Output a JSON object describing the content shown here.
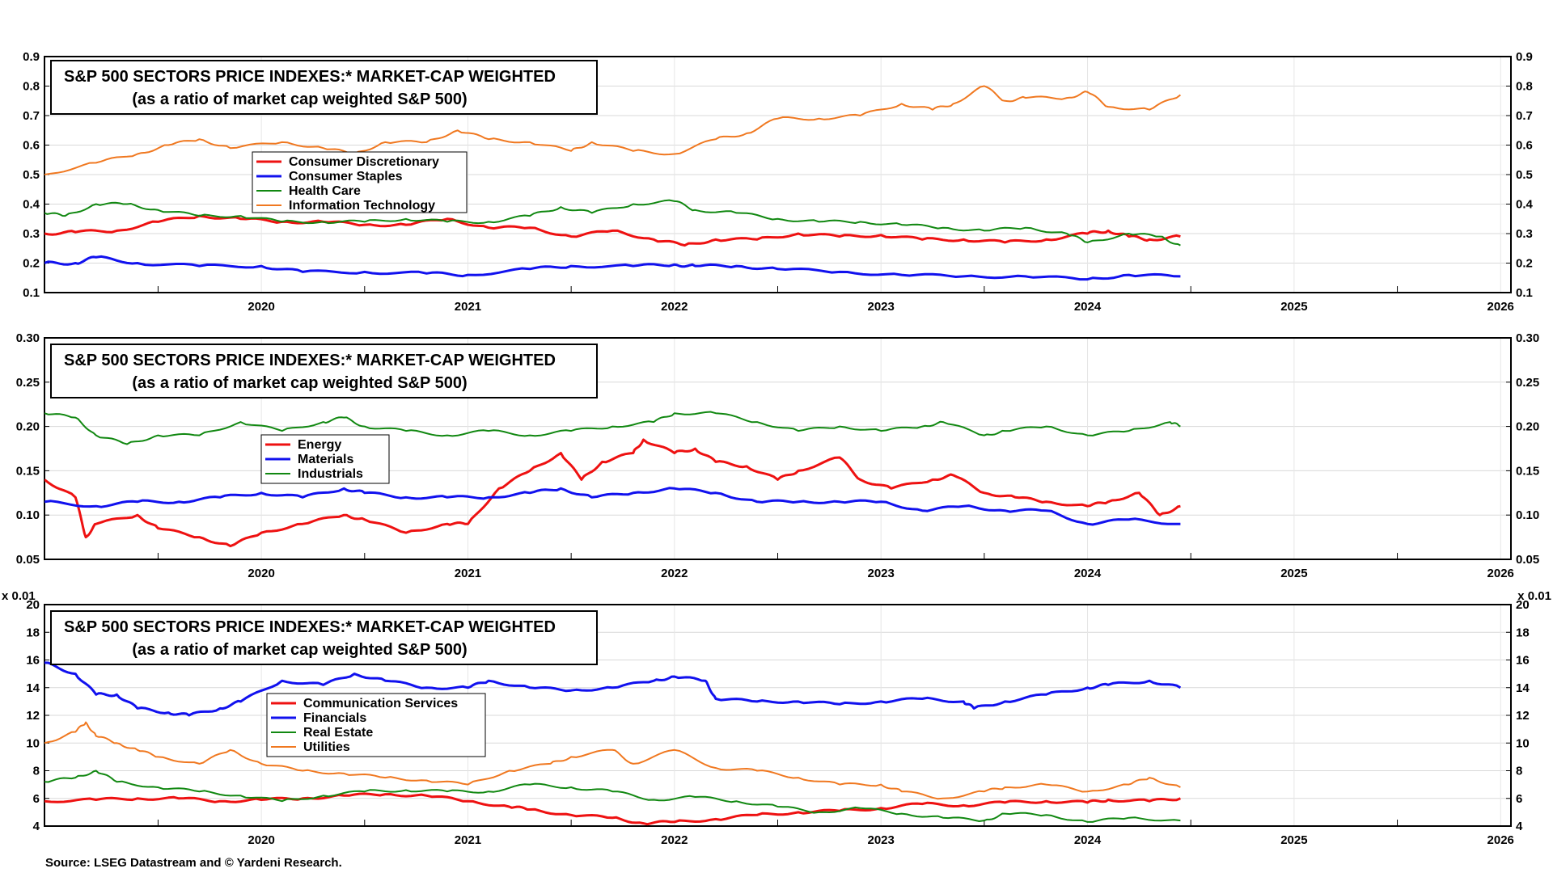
{
  "source": "Source: LSEG Datastream and © Yardeni Research.",
  "chart_data": [
    {
      "type": "line",
      "title": "S&P 500 SECTORS PRICE INDEXES:* MARKET-CAP WEIGHTED",
      "subtitle": "(as a ratio of market cap weighted S&P 500)",
      "x_range": [
        2019.45,
        2026.55
      ],
      "x_ticks": [
        "2020",
        "2021",
        "2022",
        "2023",
        "2024",
        "2025",
        "2026"
      ],
      "ylim": [
        0.1,
        0.9
      ],
      "y_ticks": [
        "0.1",
        "0.2",
        "0.3",
        "0.4",
        "0.5",
        "0.6",
        "0.7",
        "0.8",
        "0.9"
      ],
      "y_unit_label": "",
      "grid": true,
      "legend_position": "upper-left",
      "series": [
        {
          "name": "Consumer Discretionary",
          "color": "#ee1111",
          "x": [
            2019.45,
            2019.6,
            2019.8,
            2020.0,
            2020.2,
            2020.4,
            2020.6,
            2020.8,
            2021.0,
            2021.2,
            2021.4,
            2021.6,
            2021.8,
            2022.0,
            2022.2,
            2022.4,
            2022.55,
            2022.7,
            2022.9,
            2023.1,
            2023.3,
            2023.5,
            2023.7,
            2023.9,
            2024.1,
            2024.3,
            2024.5,
            2024.6,
            2024.7,
            2024.8,
            2024.95
          ],
          "values": [
            0.3,
            0.305,
            0.31,
            0.34,
            0.36,
            0.35,
            0.34,
            0.34,
            0.33,
            0.33,
            0.35,
            0.32,
            0.32,
            0.29,
            0.31,
            0.28,
            0.26,
            0.28,
            0.28,
            0.3,
            0.29,
            0.295,
            0.28,
            0.28,
            0.27,
            0.28,
            0.3,
            0.31,
            0.29,
            0.28,
            0.29
          ]
        },
        {
          "name": "Consumer Staples",
          "color": "#1111ee",
          "x": [
            2019.45,
            2019.6,
            2019.7,
            2019.9,
            2020.2,
            2020.5,
            2020.7,
            2021.0,
            2021.3,
            2021.5,
            2021.8,
            2022.0,
            2022.3,
            2022.5,
            2022.6,
            2022.8,
            2023.0,
            2023.3,
            2023.6,
            2023.9,
            2024.2,
            2024.5,
            2024.7,
            2024.95
          ],
          "values": [
            0.2,
            0.2,
            0.22,
            0.2,
            0.19,
            0.19,
            0.17,
            0.17,
            0.165,
            0.16,
            0.18,
            0.19,
            0.19,
            0.195,
            0.19,
            0.19,
            0.18,
            0.17,
            0.16,
            0.155,
            0.155,
            0.145,
            0.16,
            0.155
          ]
        },
        {
          "name": "Health Care",
          "color": "#118811",
          "x": [
            2019.45,
            2019.55,
            2019.7,
            2019.85,
            2020.0,
            2020.2,
            2020.4,
            2020.6,
            2020.8,
            2021.0,
            2021.2,
            2021.4,
            2021.6,
            2021.8,
            2021.95,
            2022.1,
            2022.3,
            2022.5,
            2022.6,
            2022.8,
            2023.0,
            2023.2,
            2023.4,
            2023.6,
            2023.8,
            2024.0,
            2024.2,
            2024.4,
            2024.5,
            2024.7,
            2024.85,
            2024.95
          ],
          "values": [
            0.37,
            0.36,
            0.4,
            0.4,
            0.38,
            0.36,
            0.36,
            0.34,
            0.34,
            0.34,
            0.35,
            0.34,
            0.34,
            0.36,
            0.39,
            0.37,
            0.4,
            0.41,
            0.38,
            0.37,
            0.35,
            0.34,
            0.34,
            0.33,
            0.32,
            0.31,
            0.32,
            0.3,
            0.27,
            0.3,
            0.29,
            0.26
          ]
        },
        {
          "name": "Information Technology",
          "color": "#f07820",
          "x": [
            2019.45,
            2019.7,
            2019.9,
            2020.05,
            2020.2,
            2020.35,
            2020.6,
            2020.8,
            2020.95,
            2021.1,
            2021.3,
            2021.45,
            2021.6,
            2021.8,
            2022.0,
            2022.1,
            2022.3,
            2022.5,
            2022.7,
            2022.85,
            2023.0,
            2023.2,
            2023.4,
            2023.6,
            2023.75,
            2023.85,
            2024.0,
            2024.1,
            2024.2,
            2024.4,
            2024.5,
            2024.6,
            2024.8,
            2024.95
          ],
          "values": [
            0.5,
            0.54,
            0.57,
            0.6,
            0.62,
            0.59,
            0.61,
            0.59,
            0.57,
            0.61,
            0.61,
            0.65,
            0.62,
            0.61,
            0.58,
            0.61,
            0.58,
            0.57,
            0.62,
            0.64,
            0.69,
            0.69,
            0.7,
            0.74,
            0.72,
            0.74,
            0.8,
            0.75,
            0.76,
            0.76,
            0.78,
            0.73,
            0.72,
            0.77
          ]
        }
      ]
    },
    {
      "type": "line",
      "title": "S&P 500 SECTORS PRICE INDEXES:* MARKET-CAP WEIGHTED",
      "subtitle": "(as a ratio of market cap weighted S&P 500)",
      "x_range": [
        2019.45,
        2026.55
      ],
      "x_ticks": [
        "2020",
        "2021",
        "2022",
        "2023",
        "2024",
        "2025",
        "2026"
      ],
      "ylim": [
        0.05,
        0.3
      ],
      "y_ticks": [
        "0.05",
        "0.10",
        "0.15",
        "0.20",
        "0.25",
        "0.30"
      ],
      "y_unit_label": "",
      "grid": true,
      "legend_position": "upper-left",
      "series": [
        {
          "name": "Energy",
          "color": "#ee1111",
          "x": [
            2019.45,
            2019.6,
            2019.65,
            2019.7,
            2019.9,
            2020.0,
            2020.2,
            2020.35,
            2020.5,
            2020.7,
            2020.9,
            2021.0,
            2021.2,
            2021.4,
            2021.5,
            2021.65,
            2021.8,
            2021.95,
            2022.05,
            2022.15,
            2022.3,
            2022.35,
            2022.5,
            2022.6,
            2022.7,
            2022.85,
            2023.0,
            2023.1,
            2023.3,
            2023.4,
            2023.55,
            2023.75,
            2023.85,
            2024.0,
            2024.15,
            2024.3,
            2024.5,
            2024.6,
            2024.75,
            2024.85,
            2024.95
          ],
          "values": [
            0.14,
            0.12,
            0.075,
            0.09,
            0.1,
            0.085,
            0.075,
            0.065,
            0.08,
            0.09,
            0.1,
            0.095,
            0.08,
            0.09,
            0.09,
            0.13,
            0.15,
            0.17,
            0.14,
            0.16,
            0.17,
            0.185,
            0.17,
            0.175,
            0.16,
            0.155,
            0.14,
            0.15,
            0.165,
            0.14,
            0.13,
            0.14,
            0.145,
            0.125,
            0.12,
            0.115,
            0.11,
            0.115,
            0.125,
            0.1,
            0.11
          ]
        },
        {
          "name": "Materials",
          "color": "#1111ee",
          "x": [
            2019.45,
            2019.7,
            2019.9,
            2020.1,
            2020.3,
            2020.5,
            2020.7,
            2020.9,
            2021.0,
            2021.2,
            2021.4,
            2021.6,
            2021.8,
            2021.95,
            2022.1,
            2022.3,
            2022.5,
            2022.7,
            2022.9,
            2023.1,
            2023.3,
            2023.5,
            2023.7,
            2023.9,
            2024.1,
            2024.3,
            2024.5,
            2024.7,
            2024.95
          ],
          "values": [
            0.115,
            0.11,
            0.115,
            0.115,
            0.12,
            0.125,
            0.12,
            0.13,
            0.125,
            0.12,
            0.12,
            0.12,
            0.125,
            0.13,
            0.12,
            0.125,
            0.13,
            0.125,
            0.115,
            0.115,
            0.115,
            0.115,
            0.105,
            0.11,
            0.105,
            0.105,
            0.09,
            0.095,
            0.09
          ]
        },
        {
          "name": "Industrials",
          "color": "#118811",
          "x": [
            2019.45,
            2019.6,
            2019.7,
            2019.85,
            2020.0,
            2020.2,
            2020.4,
            2020.6,
            2020.8,
            2020.9,
            2021.0,
            2021.2,
            2021.4,
            2021.6,
            2021.8,
            2022.0,
            2022.2,
            2022.4,
            2022.5,
            2022.7,
            2022.9,
            2023.1,
            2023.3,
            2023.5,
            2023.7,
            2023.8,
            2024.0,
            2024.1,
            2024.3,
            2024.5,
            2024.7,
            2024.9,
            2024.95
          ],
          "values": [
            0.215,
            0.21,
            0.19,
            0.18,
            0.19,
            0.19,
            0.205,
            0.195,
            0.205,
            0.21,
            0.2,
            0.195,
            0.19,
            0.195,
            0.19,
            0.195,
            0.2,
            0.205,
            0.215,
            0.215,
            0.205,
            0.195,
            0.2,
            0.195,
            0.2,
            0.205,
            0.19,
            0.195,
            0.2,
            0.19,
            0.195,
            0.205,
            0.2
          ]
        }
      ]
    },
    {
      "type": "line",
      "title": "S&P 500 SECTORS PRICE INDEXES:* MARKET-CAP WEIGHTED",
      "subtitle": "(as a ratio of market cap weighted S&P 500)",
      "x_range": [
        2019.45,
        2026.55
      ],
      "x_ticks": [
        "2020",
        "2021",
        "2022",
        "2023",
        "2024",
        "2025",
        "2026"
      ],
      "ylim": [
        4,
        20
      ],
      "y_ticks": [
        "4",
        "6",
        "8",
        "10",
        "12",
        "14",
        "16",
        "18",
        "20"
      ],
      "y_unit_label": "x 0.01",
      "grid": true,
      "legend_position": "upper-left",
      "series": [
        {
          "name": "Communication Services",
          "color": "#ee1111",
          "x": [
            2019.45,
            2019.7,
            2019.9,
            2020.1,
            2020.3,
            2020.5,
            2020.7,
            2020.9,
            2021.1,
            2021.3,
            2021.5,
            2021.7,
            2021.8,
            2022.0,
            2022.2,
            2022.35,
            2022.5,
            2022.7,
            2022.9,
            2023.1,
            2023.3,
            2023.5,
            2023.7,
            2023.9,
            2024.1,
            2024.3,
            2024.5,
            2024.6,
            2024.8,
            2024.95
          ],
          "values": [
            5.8,
            5.9,
            6.0,
            6.0,
            5.8,
            5.9,
            6.0,
            6.2,
            6.3,
            6.2,
            5.8,
            5.4,
            5.2,
            4.8,
            4.6,
            4.2,
            4.3,
            4.5,
            4.8,
            5.0,
            5.1,
            5.3,
            5.6,
            5.5,
            5.7,
            5.8,
            5.7,
            5.9,
            5.8,
            6.0
          ]
        },
        {
          "name": "Financials",
          "color": "#1111ee",
          "x": [
            2019.45,
            2019.6,
            2019.7,
            2019.8,
            2019.9,
            2020.05,
            2020.15,
            2020.3,
            2020.4,
            2020.6,
            2020.8,
            2020.95,
            2021.1,
            2021.3,
            2021.5,
            2021.6,
            2021.8,
            2022.0,
            2022.2,
            2022.4,
            2022.5,
            2022.65,
            2022.7,
            2022.9,
            2023.1,
            2023.3,
            2023.5,
            2023.7,
            2023.9,
            2023.95,
            2024.1,
            2024.3,
            2024.5,
            2024.6,
            2024.8,
            2024.95
          ],
          "values": [
            15.8,
            15.0,
            13.5,
            13.5,
            12.5,
            12.2,
            12.0,
            12.5,
            13.0,
            14.5,
            14.2,
            15.0,
            14.5,
            14.0,
            14.0,
            14.5,
            14.0,
            13.8,
            14.0,
            14.5,
            14.8,
            14.5,
            13.2,
            13.0,
            13.0,
            12.8,
            13.0,
            13.2,
            13.0,
            12.5,
            13.0,
            13.5,
            14.0,
            14.2,
            14.5,
            14.0
          ]
        },
        {
          "name": "Real Estate",
          "color": "#118811",
          "x": [
            2019.45,
            2019.6,
            2019.7,
            2019.8,
            2020.0,
            2020.2,
            2020.4,
            2020.6,
            2020.8,
            2021.0,
            2021.2,
            2021.4,
            2021.6,
            2021.8,
            2022.0,
            2022.2,
            2022.4,
            2022.6,
            2022.8,
            2023.0,
            2023.2,
            2023.4,
            2023.6,
            2023.8,
            2024.0,
            2024.1,
            2024.3,
            2024.5,
            2024.7,
            2024.95
          ],
          "values": [
            7.2,
            7.5,
            8.0,
            7.2,
            6.8,
            6.5,
            6.2,
            5.8,
            6.2,
            6.5,
            6.6,
            6.5,
            6.5,
            7.0,
            6.8,
            6.5,
            5.9,
            6.1,
            5.8,
            5.4,
            5.0,
            5.3,
            4.9,
            4.6,
            4.4,
            4.9,
            4.8,
            4.3,
            4.6,
            4.4
          ]
        },
        {
          "name": "Utilities",
          "color": "#f07820",
          "x": [
            2019.45,
            2019.6,
            2019.65,
            2019.7,
            2019.8,
            2019.9,
            2020.0,
            2020.2,
            2020.35,
            2020.5,
            2020.7,
            2020.9,
            2021.1,
            2021.3,
            2021.5,
            2021.7,
            2021.9,
            2022.0,
            2022.2,
            2022.3,
            2022.5,
            2022.7,
            2022.9,
            2023.1,
            2023.3,
            2023.5,
            2023.6,
            2023.8,
            2024.0,
            2024.1,
            2024.3,
            2024.5,
            2024.7,
            2024.8,
            2024.95
          ],
          "values": [
            10.0,
            10.8,
            11.5,
            10.5,
            10.0,
            9.5,
            9.0,
            8.5,
            9.5,
            8.5,
            8.0,
            7.8,
            7.5,
            7.3,
            7.0,
            8.0,
            8.5,
            9.0,
            9.5,
            8.5,
            9.5,
            8.2,
            8.0,
            7.5,
            7.0,
            7.0,
            6.5,
            6.0,
            6.5,
            6.8,
            7.0,
            6.5,
            7.0,
            7.5,
            6.8
          ]
        }
      ]
    }
  ]
}
